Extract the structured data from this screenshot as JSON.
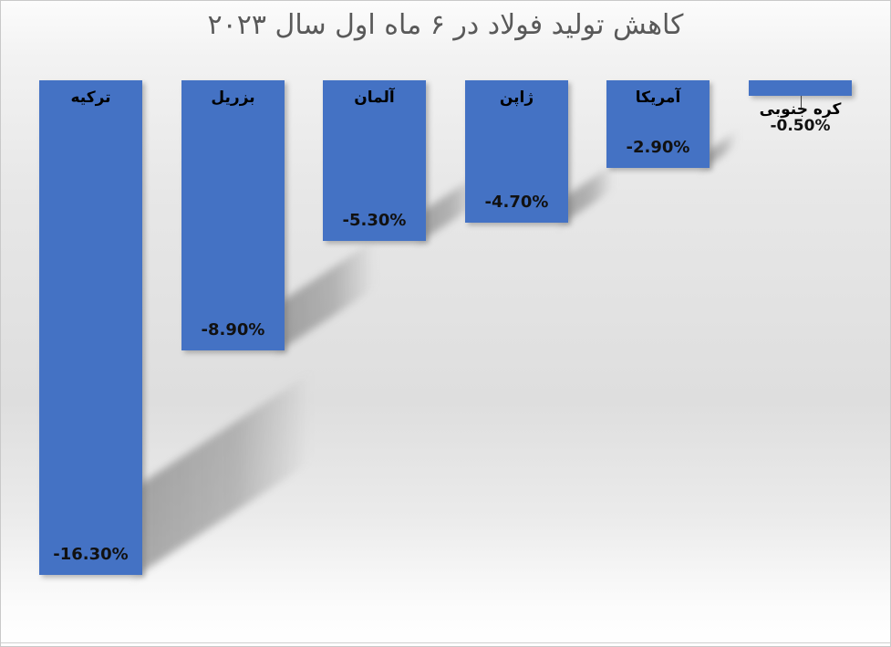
{
  "page": {
    "title": "کاهش تولید فولاد در ۶ ماه اول سال ۲۰۲۳"
  },
  "chart_data": {
    "type": "bar",
    "title": "کاهش تولید فولاد در ۶ ماه اول سال ۲۰۲۳",
    "rtl": true,
    "categories": [
      "ترکیه",
      "بزریل",
      "آلمان",
      "ژاپن",
      "آمریکا",
      "کره جنوبی"
    ],
    "values": [
      -16.3,
      -8.9,
      -5.3,
      -4.7,
      -2.9,
      -0.5
    ],
    "value_labels": [
      "-16.30%",
      "-8.90%",
      "-5.30%",
      "-4.70%",
      "-2.90%",
      "-0.50%"
    ],
    "unit": "%",
    "ylim": [
      -17,
      0
    ],
    "bars_hang_from_top": true,
    "grid": false,
    "legend": "none",
    "bar_color": "#4472C4",
    "title_color": "#595959",
    "label_color": "#000000",
    "shadow_style": "perspective-right"
  }
}
